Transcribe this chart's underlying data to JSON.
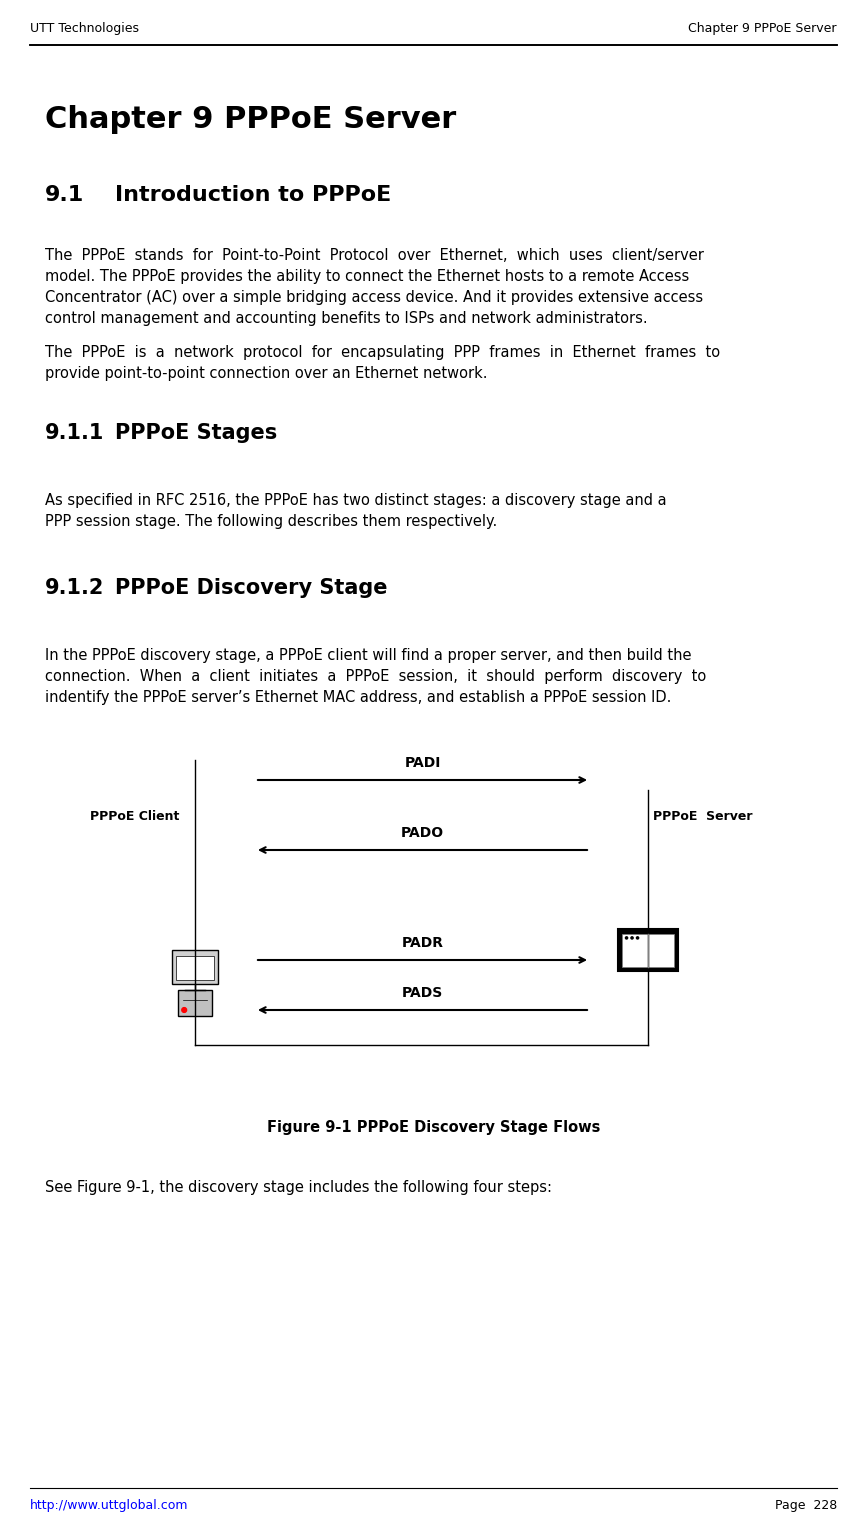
{
  "bg_color": "#ffffff",
  "header_left": "UTT Technologies",
  "header_right": "Chapter 9 PPPoE Server",
  "header_right_normal": "Chapter 9 PPPoE ",
  "header_right_bold": "Server",
  "title": "Chapter 9 PPPoE Server",
  "section_91": "9.1    Introduction to PPPoE",
  "para1": "The  PPPoE  stands  for  Point-to-Point  Protocol  over  Ethernet,  which  uses  client/server\nmodel. The PPPoE provides the ability to connect the Ethernet hosts to a remote Access\nConcentrator (AC) over a simple bridging access device. And it provides extensive access\ncontrol management and accounting benefits to ISPs and network administrators.",
  "para2": "The  PPPoE  is  a  network  protocol  for  encapsulating  PPP  frames  in  Ethernet  frames  to\nprovide point-to-point connection over an Ethernet network.",
  "section_911": "9.1.1    PPPoE Stages",
  "para3": "As specified in RFC 2516, the PPPoE has two distinct stages: a discovery stage and a\nPPP session stage. The following describes them respectively.",
  "section_912": "9.1.2    PPPoE Discovery Stage",
  "para4": "In the PPPoE discovery stage, a PPPoE client will find a proper server, and then build the\nconnection.  When  a  client  initiates  a  PPPoE  session,  it  should  perform  discovery  to\nindentify the PPPoE server’s Ethernet MAC address, and establish a PPPoE session ID.",
  "fig_caption": "Figure 9-1 PPPoE Discovery Stage Flows",
  "para5": "See Figure 9-1, the discovery stage includes the following four steps:",
  "footer_left": "http://www.uttglobal.com",
  "footer_right": "Page  228"
}
